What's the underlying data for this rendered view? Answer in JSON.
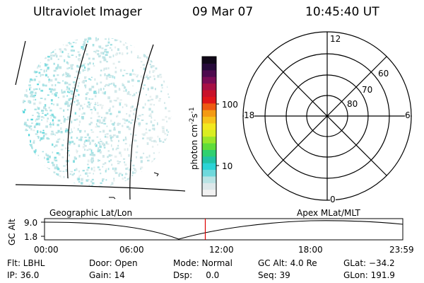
{
  "header": {
    "instrument": "Ultraviolet Imager",
    "date": "09 Mar 07",
    "time": "10:45:40 UT"
  },
  "colorbar": {
    "unit_label": "photon cm",
    "exp1": "-2",
    "s_label": "s",
    "exp2": "-1",
    "tick_100": "100",
    "tick_10": "10",
    "colors": [
      "#f2f2f2",
      "#dde8ea",
      "#b9e3e4",
      "#6fd9dc",
      "#2cd3d6",
      "#22c3a6",
      "#2fd070",
      "#5fdc3a",
      "#9ae62a",
      "#d9ee22",
      "#f2e81e",
      "#f6c21a",
      "#f49a12",
      "#ee5a12",
      "#e0161a",
      "#c8122a",
      "#a81045",
      "#7a0c55",
      "#4e0a4e",
      "#260a3a",
      "#100818"
    ]
  },
  "polar_plot": {
    "mlt_12": "12",
    "mlt_18": "18",
    "mlt_6": "6",
    "mlt_0": "0",
    "lat_60": "60",
    "lat_70": "70",
    "lat_80": "80"
  },
  "timeline": {
    "left_label": "Geographic Lat/Lon",
    "right_label": "Apex MLat/MLT",
    "axis_label": "GC Alt",
    "y_max": "9.0",
    "y_min": "1.8",
    "ticks": [
      "00:00",
      "06:00",
      "12:00",
      "18:00",
      "23:59"
    ],
    "current_time_hours": 10.76,
    "marker_color": "#dd0000"
  },
  "footer": {
    "filter": "Flt: LBHL",
    "door": "Door: Open",
    "mode": "Mode: Normal",
    "gc_alt": "GC Alt: 4.0 Re",
    "glat": "GLat: −34.2",
    "ip": "IP: 36.0",
    "gain": "Gain: 14",
    "dsp": "Dsp:     0.0",
    "seq": "Seq: 39",
    "glon": "GLon: 191.9"
  }
}
